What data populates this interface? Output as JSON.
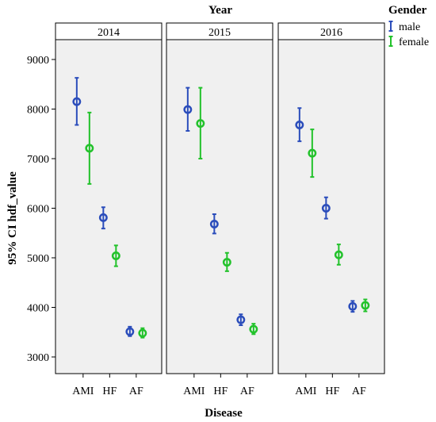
{
  "chart_data": {
    "type": "scatter",
    "subtype": "error-bar-panels",
    "title": "",
    "panel_variable": "Year",
    "panels": [
      "2014",
      "2015",
      "2016"
    ],
    "categories": [
      "AMI",
      "HF",
      "AF"
    ],
    "xlabel": "Disease",
    "ylabel": "95% CI hdf_value",
    "ylim": [
      2700,
      9600
    ],
    "yticks": [
      3000,
      4000,
      5000,
      6000,
      7000,
      8000,
      9000
    ],
    "legend": {
      "title": "Gender",
      "placement": "top-right",
      "entries": [
        "male",
        "female"
      ]
    },
    "series": [
      {
        "name": "male",
        "color": "#2b4dbb",
        "points": [
          {
            "panel": "2014",
            "category": "AMI",
            "mean": 8150,
            "lower": 7680,
            "upper": 8630
          },
          {
            "panel": "2014",
            "category": "HF",
            "mean": 5810,
            "lower": 5590,
            "upper": 6020
          },
          {
            "panel": "2014",
            "category": "AF",
            "mean": 3510,
            "lower": 3420,
            "upper": 3610
          },
          {
            "panel": "2015",
            "category": "AMI",
            "mean": 7990,
            "lower": 7560,
            "upper": 8430
          },
          {
            "panel": "2015",
            "category": "HF",
            "mean": 5680,
            "lower": 5490,
            "upper": 5880
          },
          {
            "panel": "2015",
            "category": "AF",
            "mean": 3750,
            "lower": 3640,
            "upper": 3860
          },
          {
            "panel": "2016",
            "category": "AMI",
            "mean": 7680,
            "lower": 7350,
            "upper": 8020
          },
          {
            "panel": "2016",
            "category": "HF",
            "mean": 6000,
            "lower": 5790,
            "upper": 6220
          },
          {
            "panel": "2016",
            "category": "AF",
            "mean": 4020,
            "lower": 3910,
            "upper": 4130
          }
        ]
      },
      {
        "name": "female",
        "color": "#22c22b",
        "points": [
          {
            "panel": "2014",
            "category": "AMI",
            "mean": 7210,
            "lower": 6490,
            "upper": 7930
          },
          {
            "panel": "2014",
            "category": "HF",
            "mean": 5040,
            "lower": 4830,
            "upper": 5250
          },
          {
            "panel": "2014",
            "category": "AF",
            "mean": 3480,
            "lower": 3390,
            "upper": 3580
          },
          {
            "panel": "2015",
            "category": "AMI",
            "mean": 7710,
            "lower": 7000,
            "upper": 8430
          },
          {
            "panel": "2015",
            "category": "HF",
            "mean": 4910,
            "lower": 4730,
            "upper": 5100
          },
          {
            "panel": "2015",
            "category": "AF",
            "mean": 3560,
            "lower": 3460,
            "upper": 3670
          },
          {
            "panel": "2016",
            "category": "AMI",
            "mean": 7110,
            "lower": 6630,
            "upper": 7590
          },
          {
            "panel": "2016",
            "category": "HF",
            "mean": 5060,
            "lower": 4860,
            "upper": 5270
          },
          {
            "panel": "2016",
            "category": "AF",
            "mean": 4040,
            "lower": 3920,
            "upper": 4160
          }
        ]
      }
    ],
    "colors": {
      "panel_background": "#f0f0f0",
      "frame": "#000000"
    }
  }
}
